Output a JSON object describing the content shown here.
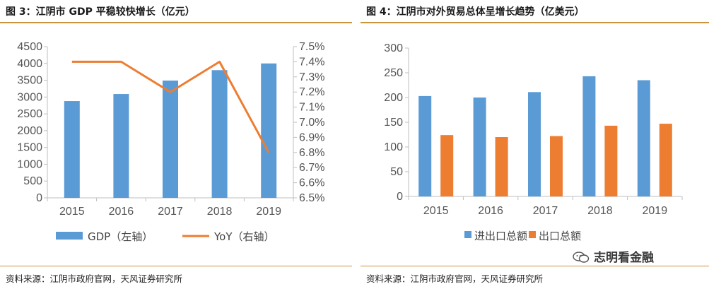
{
  "left": {
    "title": "图 3：江阴市 GDP 平稳较快增长（亿元）",
    "source": "资料来源：江阴市政府官网，天风证券研究所"
  },
  "right": {
    "title": "图 4：江阴市对外贸易总体呈增长趋势（亿美元）",
    "source": "资料来源：江阴市政府官网，天风证券研究所"
  },
  "watermark": {
    "text": "志明看金融",
    "icon": "wechat-icon"
  },
  "colors": {
    "blue": "#5b9bd5",
    "orange": "#ed7d31",
    "rule": "#c9943c"
  },
  "chart_data": [
    {
      "type": "bar+line",
      "categories": [
        "2015",
        "2016",
        "2017",
        "2018",
        "2019"
      ],
      "series": [
        {
          "name": "GDP（左轴）",
          "kind": "bar",
          "axis": "left",
          "values": [
            2880,
            3090,
            3490,
            3800,
            4000
          ]
        },
        {
          "name": "YoY（右轴）",
          "kind": "line",
          "axis": "right",
          "values": [
            7.4,
            7.4,
            7.2,
            7.4,
            6.8
          ]
        }
      ],
      "y_left": {
        "ylim": [
          0,
          4500
        ],
        "ticks": [
          "0",
          "500",
          "1000",
          "1500",
          "2000",
          "2500",
          "3000",
          "3500",
          "4000",
          "4500"
        ]
      },
      "y_right": {
        "ylim": [
          6.5,
          7.5
        ],
        "ticks": [
          "6.5%",
          "6.6%",
          "6.7%",
          "6.8%",
          "6.9%",
          "7.0%",
          "7.1%",
          "7.2%",
          "7.3%",
          "7.4%",
          "7.5%"
        ]
      },
      "grid": false,
      "legend": "bottom"
    },
    {
      "type": "bar",
      "categories": [
        "2015",
        "2016",
        "2017",
        "2018",
        "2019"
      ],
      "series": [
        {
          "name": "进出口总额",
          "values": [
            203,
            200,
            211,
            243,
            235
          ]
        },
        {
          "name": "出口总额",
          "values": [
            124,
            120,
            122,
            143,
            147
          ]
        }
      ],
      "ylim": [
        0,
        300
      ],
      "y_ticks": [
        "0",
        "50",
        "100",
        "150",
        "200",
        "250",
        "300"
      ],
      "grid": false,
      "legend": "bottom"
    }
  ]
}
